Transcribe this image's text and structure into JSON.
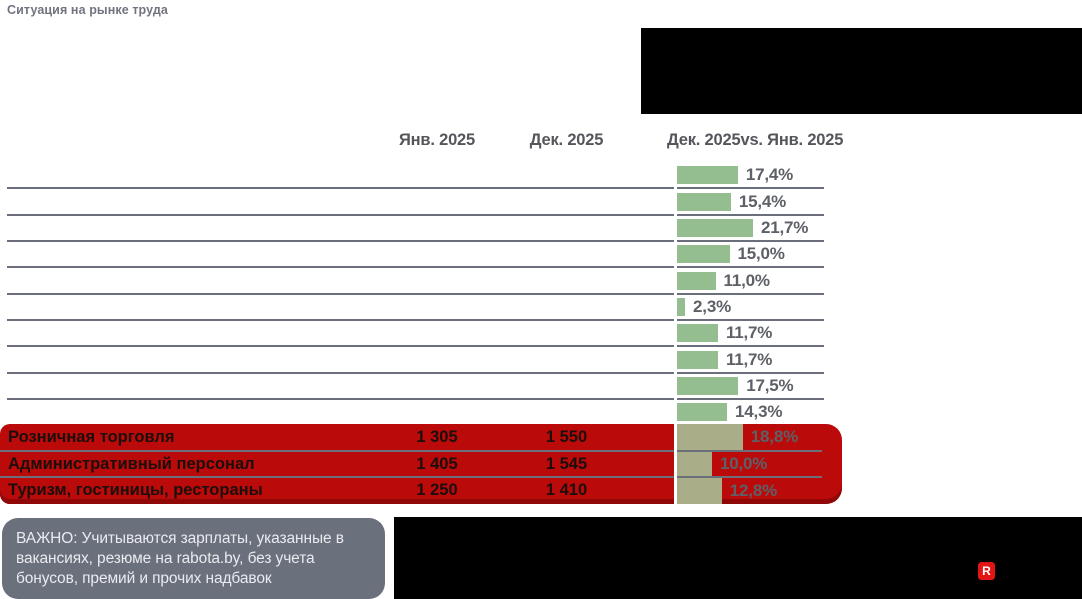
{
  "header": {
    "title": "Ситуация на рынке труда"
  },
  "columns": {
    "jan": "Янв. 2025",
    "dec": "Дек. 2025",
    "change": "Дек. 2025vs. Янв. 2025"
  },
  "rows": [
    {
      "label": "",
      "jan": "",
      "dec": "",
      "pct": 17.4,
      "pct_label": "17,4%",
      "highlighted": false
    },
    {
      "label": "",
      "jan": "",
      "dec": "",
      "pct": 15.4,
      "pct_label": "15,4%",
      "highlighted": false
    },
    {
      "label": "",
      "jan": "",
      "dec": "",
      "pct": 21.7,
      "pct_label": "21,7%",
      "highlighted": false
    },
    {
      "label": "",
      "jan": "",
      "dec": "",
      "pct": 15.0,
      "pct_label": "15,0%",
      "highlighted": false
    },
    {
      "label": "",
      "jan": "",
      "dec": "",
      "pct": 11.0,
      "pct_label": "11,0%",
      "highlighted": false
    },
    {
      "label": "",
      "jan": "",
      "dec": "",
      "pct": 2.3,
      "pct_label": "2,3%",
      "highlighted": false
    },
    {
      "label": "",
      "jan": "",
      "dec": "",
      "pct": 11.7,
      "pct_label": "11,7%",
      "highlighted": false
    },
    {
      "label": "",
      "jan": "",
      "dec": "",
      "pct": 11.7,
      "pct_label": "11,7%",
      "highlighted": false
    },
    {
      "label": "",
      "jan": "",
      "dec": "",
      "pct": 17.5,
      "pct_label": "17,5%",
      "highlighted": false
    },
    {
      "label": "",
      "jan": "",
      "dec": "",
      "pct": 14.3,
      "pct_label": "14,3%",
      "highlighted": false
    },
    {
      "label": "Розничная торговля",
      "jan": "1 305",
      "dec": "1 550",
      "pct": 18.8,
      "pct_label": "18,8%",
      "highlighted": true
    },
    {
      "label": "Административный персонал",
      "jan": "1 405",
      "dec": "1 545",
      "pct": 10.0,
      "pct_label": "10,0%",
      "highlighted": true
    },
    {
      "label": "Туризм, гостиницы, рестораны",
      "jan": "1 250",
      "dec": "1 410",
      "pct": 12.8,
      "pct_label": "12,8%",
      "highlighted": true
    }
  ],
  "note": {
    "text": "ВАЖНО: Учитываются зарплаты, указанные в\nвакансиях, резюме на rabota.by, без учета\nбонусов, премий и прочих надбавок"
  },
  "logo": {
    "letter": "R"
  },
  "colors": {
    "bar_green": "#94bd90",
    "bar_olive_on_red": "#a9ad88",
    "highlight_red": "#ba0a0a",
    "highlight_red_dark_edge": "#8f0707",
    "grid_slate": "#6b6e7b",
    "note_bg": "#6b707d",
    "note_text": "#e9ebf0",
    "header_text_gray": "#55565c",
    "percent_text_gray": "#5d6066",
    "title_gray": "#71737f",
    "logo_red": "#e31414",
    "masked_black": "#000000",
    "axis_white": "#ffffff"
  },
  "chart_data": {
    "type": "bar",
    "orientation": "horizontal",
    "title": "Ситуация на рынке труда",
    "value_columns": [
      "Янв. 2025",
      "Дек. 2025"
    ],
    "bar_metric": "Дек. 2025 vs. Янв. 2025 (изменение, %)",
    "categories": [
      "",
      "",
      "",
      "",
      "",
      "",
      "",
      "",
      "",
      "",
      "Розничная торговля",
      "Административный персонал",
      "Туризм, гостиницы, рестораны"
    ],
    "values_pct": [
      17.4,
      15.4,
      21.7,
      15.0,
      11.0,
      2.3,
      11.7,
      11.7,
      17.5,
      14.3,
      18.8,
      10.0,
      12.8
    ],
    "series": [
      {
        "name": "Янв. 2025",
        "values": [
          null,
          null,
          null,
          null,
          null,
          null,
          null,
          null,
          null,
          null,
          1305,
          1405,
          1250
        ]
      },
      {
        "name": "Дек. 2025",
        "values": [
          null,
          null,
          null,
          null,
          null,
          null,
          null,
          null,
          null,
          null,
          1550,
          1545,
          1410
        ]
      }
    ],
    "highlighted_rows": [
      10,
      11,
      12
    ],
    "legend": "none",
    "grid": "horizontal-row-dividers",
    "note": "ВАЖНО: Учитываются зарплаты, указанные в вакансиях, резюме на rabota.by, без учета бонусов, премий и прочих надбавок"
  }
}
